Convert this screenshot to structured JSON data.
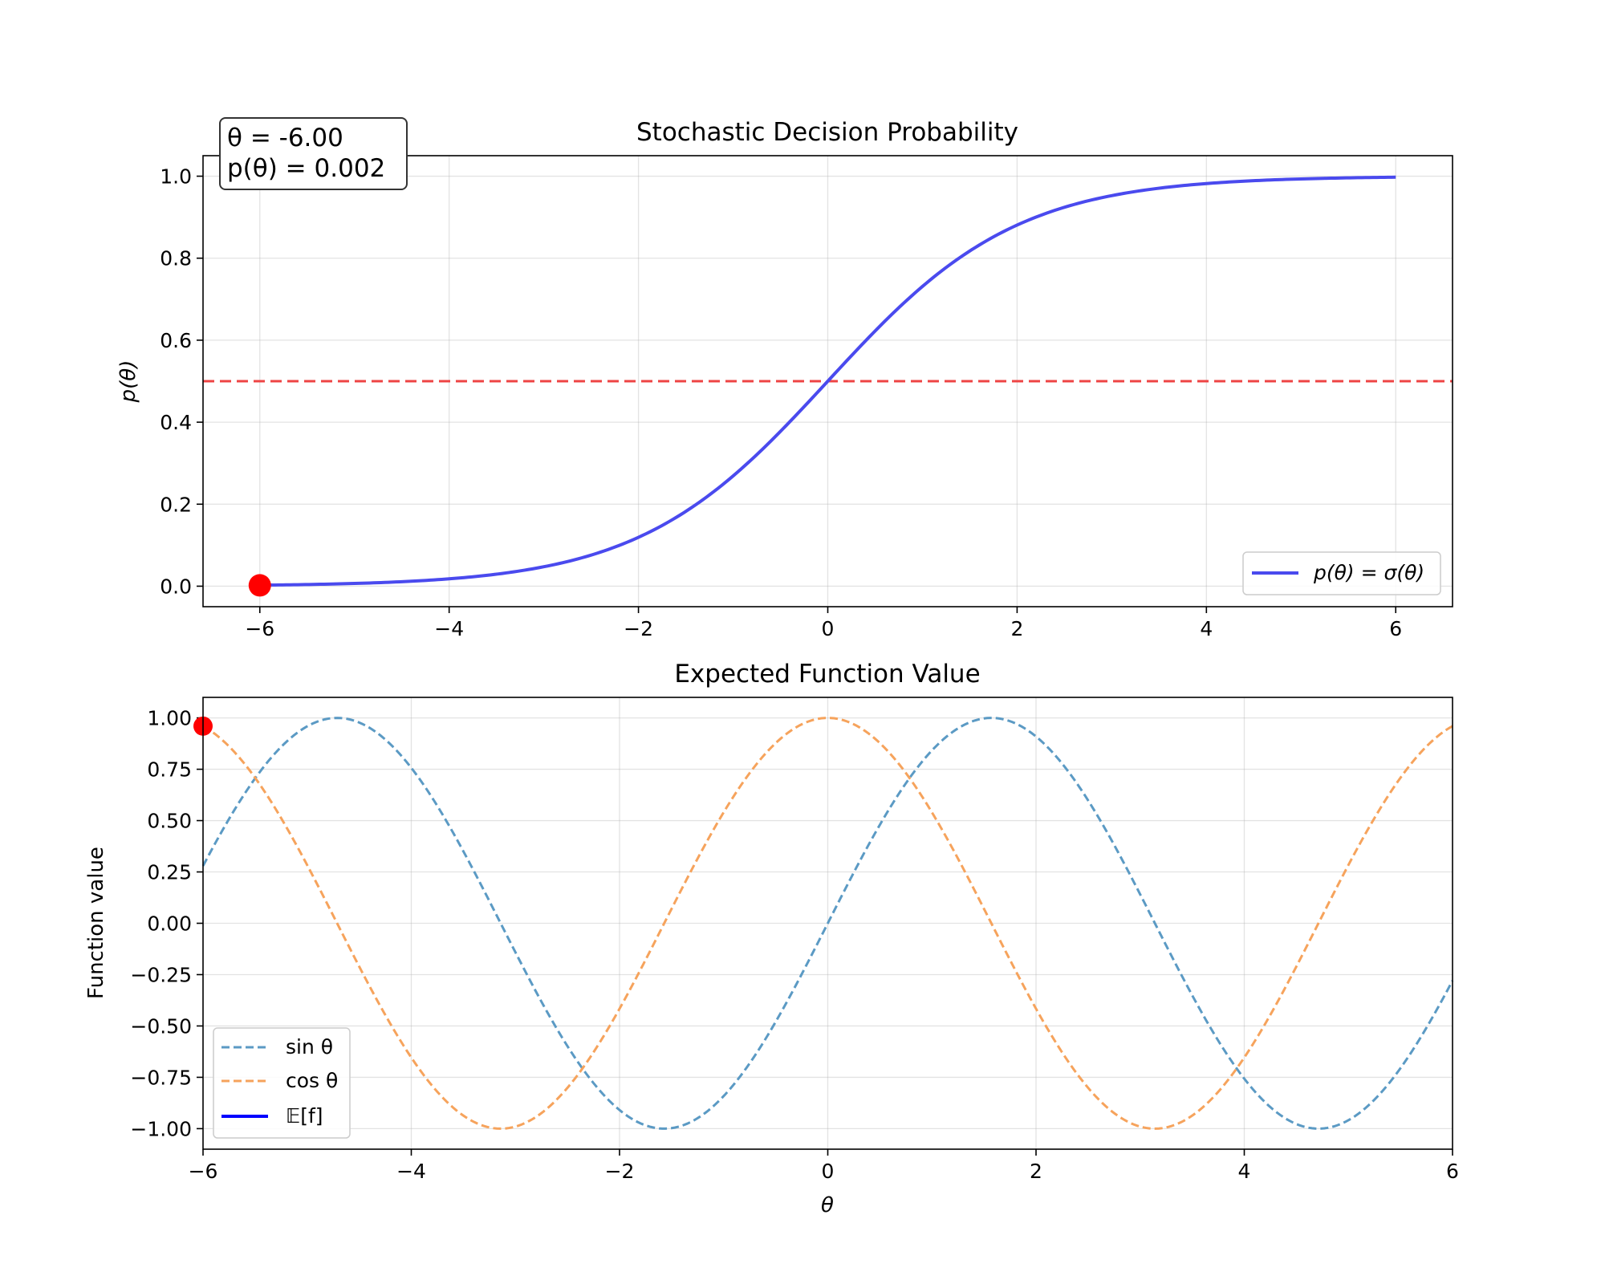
{
  "chart_data": [
    {
      "type": "line",
      "title": "Stochastic Decision Probability",
      "xlabel": "",
      "ylabel": "p(θ)",
      "xlim": [
        -6.6,
        6.6
      ],
      "ylim": [
        -0.05,
        1.05
      ],
      "xticks": [
        -6,
        -4,
        -2,
        0,
        2,
        4,
        6
      ],
      "xtick_labels": [
        "−6",
        "−4",
        "−2",
        "0",
        "2",
        "4",
        "6"
      ],
      "yticks": [
        0.0,
        0.2,
        0.4,
        0.6,
        0.8,
        1.0
      ],
      "ytick_labels": [
        "0.0",
        "0.2",
        "0.4",
        "0.6",
        "0.8",
        "1.0"
      ],
      "grid": true,
      "legend_position": "lower-right",
      "series": [
        {
          "name": "p(θ) = σ(θ)",
          "style": "solid",
          "color": "#4a4aee",
          "x": [
            -6,
            -5,
            -4,
            -3,
            -2,
            -1.5,
            -1,
            -0.5,
            0,
            0.5,
            1,
            1.5,
            2,
            3,
            4,
            5,
            6
          ],
          "y": [
            0.002,
            0.007,
            0.018,
            0.047,
            0.119,
            0.182,
            0.269,
            0.378,
            0.5,
            0.622,
            0.731,
            0.818,
            0.881,
            0.953,
            0.982,
            0.993,
            0.998
          ]
        }
      ],
      "reference_line": {
        "y": 0.5,
        "style": "dashed",
        "color": "#ee4444"
      },
      "marker": {
        "x": -6,
        "y": 0.002,
        "color": "#ff0000"
      },
      "annotation_lines": [
        "θ = -6.00",
        "p(θ) = 0.002"
      ]
    },
    {
      "type": "line",
      "title": "Expected Function Value",
      "xlabel": "θ",
      "ylabel": "Function value",
      "xlim": [
        -6,
        6
      ],
      "ylim": [
        -1.1,
        1.1
      ],
      "xticks": [
        -6,
        -4,
        -2,
        0,
        2,
        4,
        6
      ],
      "xtick_labels": [
        "−6",
        "−4",
        "−2",
        "0",
        "2",
        "4",
        "6"
      ],
      "yticks": [
        -1.0,
        -0.75,
        -0.5,
        -0.25,
        0.0,
        0.25,
        0.5,
        0.75,
        1.0
      ],
      "ytick_labels": [
        "−1.00",
        "−0.75",
        "−0.50",
        "−0.25",
        "0.00",
        "0.25",
        "0.50",
        "0.75",
        "1.00"
      ],
      "grid": true,
      "legend_position": "lower-left",
      "series": [
        {
          "name": "sin θ",
          "style": "dashed",
          "color": "#5b9ac4",
          "function": "sin",
          "x_range": [
            -6,
            6
          ]
        },
        {
          "name": "cos θ",
          "style": "dashed",
          "color": "#f6a35c",
          "function": "cos",
          "x_range": [
            -6,
            6
          ]
        },
        {
          "name": "𝔼[f]",
          "style": "solid",
          "color": "#0000ff",
          "x": [],
          "y": []
        }
      ],
      "marker": {
        "x": -6,
        "y": 0.96,
        "color": "#ff0000"
      }
    }
  ]
}
